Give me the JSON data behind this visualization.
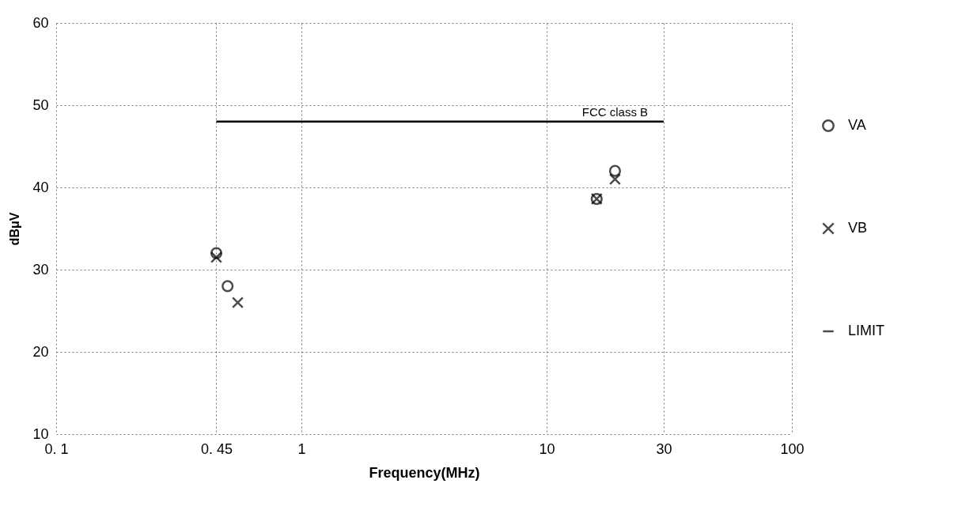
{
  "chart_data": {
    "type": "scatter",
    "xlabel": "Frequency(MHz)",
    "ylabel": "dBμV",
    "log": "x",
    "grid": true,
    "legend": "right",
    "xlim": [
      0.1,
      100
    ],
    "xticks": [
      {
        "value": 0.1,
        "label": "0. 1"
      },
      {
        "value": 0.45,
        "label": "0. 45"
      },
      1,
      10,
      30,
      100
    ],
    "ylim": [
      10,
      60
    ],
    "yticks": [
      10,
      20,
      30,
      40,
      50,
      60
    ],
    "series": [
      {
        "name": "VA",
        "color": "#000000",
        "marker": "circle",
        "x": [
          0.45,
          0.5,
          16,
          19
        ],
        "values": [
          32,
          28,
          38.6,
          42
        ]
      },
      {
        "name": "VB",
        "color": "#000000",
        "marker": "cross",
        "x": [
          0.45,
          0.55,
          16,
          19
        ],
        "values": [
          31.5,
          26,
          38.6,
          41
        ]
      },
      {
        "name": "LIMIT",
        "type": "line",
        "color": "#000000",
        "marker": "none",
        "x": [
          0.45,
          30
        ],
        "values": [
          48,
          48
        ]
      }
    ],
    "annotations": [
      {
        "text": "FCC class B",
        "x": 19,
        "y": 48
      }
    ]
  }
}
